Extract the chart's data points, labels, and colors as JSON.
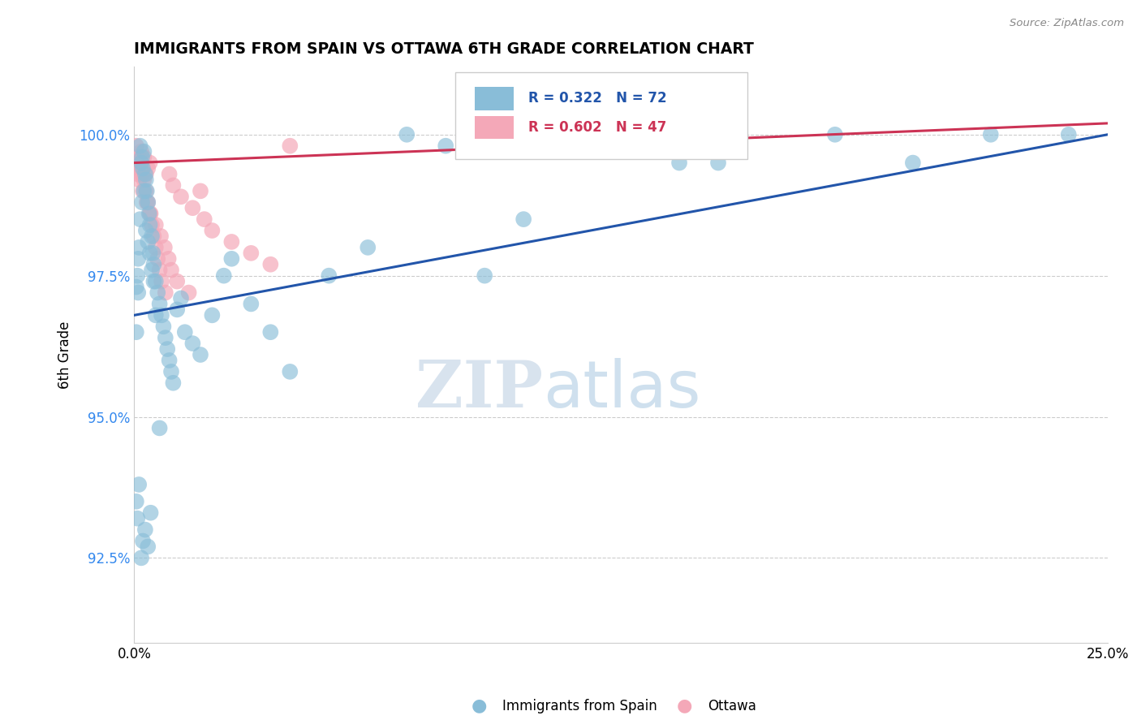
{
  "title": "IMMIGRANTS FROM SPAIN VS OTTAWA 6TH GRADE CORRELATION CHART",
  "source": "Source: ZipAtlas.com",
  "ylabel": "6th Grade",
  "yticks": [
    92.5,
    95.0,
    97.5,
    100.0
  ],
  "ytick_labels": [
    "92.5%",
    "95.0%",
    "97.5%",
    "100.0%"
  ],
  "xlim": [
    0.0,
    25.0
  ],
  "ylim": [
    91.0,
    101.2
  ],
  "legend_blue_label": "Immigrants from Spain",
  "legend_pink_label": "Ottawa",
  "R_blue": 0.322,
  "N_blue": 72,
  "R_pink": 0.602,
  "N_pink": 47,
  "blue_color": "#89bdd8",
  "pink_color": "#f4a8b8",
  "blue_line_color": "#2255aa",
  "pink_line_color": "#cc3355",
  "watermark_zip": "ZIP",
  "watermark_atlas": "atlas",
  "blue_x": [
    0.05,
    0.08,
    0.1,
    0.12,
    0.15,
    0.18,
    0.2,
    0.22,
    0.25,
    0.28,
    0.3,
    0.32,
    0.35,
    0.38,
    0.4,
    0.45,
    0.48,
    0.5,
    0.55,
    0.6,
    0.65,
    0.7,
    0.75,
    0.8,
    0.85,
    0.9,
    0.95,
    1.0,
    1.1,
    1.2,
    1.3,
    1.5,
    1.7,
    2.0,
    2.3,
    2.5,
    3.0,
    3.5,
    4.0,
    5.0,
    6.0,
    7.0,
    8.0,
    9.0,
    10.0,
    12.0,
    14.0,
    15.0,
    18.0,
    20.0,
    22.0,
    24.0,
    0.05,
    0.1,
    0.15,
    0.2,
    0.25,
    0.3,
    0.35,
    0.4,
    0.45,
    0.5,
    0.05,
    0.08,
    0.12,
    0.18,
    0.22,
    0.28,
    0.35,
    0.42,
    0.55,
    0.65
  ],
  "blue_y": [
    97.3,
    97.5,
    97.8,
    98.0,
    99.8,
    99.5,
    99.6,
    99.4,
    99.7,
    99.3,
    99.2,
    99.0,
    98.8,
    98.6,
    98.4,
    98.2,
    97.9,
    97.7,
    97.4,
    97.2,
    97.0,
    96.8,
    96.6,
    96.4,
    96.2,
    96.0,
    95.8,
    95.6,
    96.9,
    97.1,
    96.5,
    96.3,
    96.1,
    96.8,
    97.5,
    97.8,
    97.0,
    96.5,
    95.8,
    97.5,
    98.0,
    100.0,
    99.8,
    97.5,
    98.5,
    100.0,
    99.5,
    99.5,
    100.0,
    99.5,
    100.0,
    100.0,
    96.5,
    97.2,
    98.5,
    98.8,
    99.0,
    98.3,
    98.1,
    97.9,
    97.6,
    97.4,
    93.5,
    93.2,
    93.8,
    92.5,
    92.8,
    93.0,
    92.7,
    93.3,
    96.8,
    94.8
  ],
  "pink_x": [
    0.05,
    0.08,
    0.1,
    0.15,
    0.18,
    0.2,
    0.25,
    0.3,
    0.35,
    0.4,
    0.45,
    0.5,
    0.55,
    0.6,
    0.65,
    0.7,
    0.8,
    0.9,
    1.0,
    1.2,
    1.5,
    1.8,
    2.0,
    2.5,
    3.0,
    3.5,
    0.05,
    0.1,
    0.15,
    0.2,
    0.25,
    0.3,
    0.35,
    0.4,
    0.12,
    0.22,
    0.32,
    0.42,
    0.55,
    0.68,
    0.78,
    0.88,
    0.95,
    1.1,
    1.4,
    1.7,
    4.0
  ],
  "pink_y": [
    99.8,
    99.5,
    99.6,
    99.4,
    99.7,
    99.3,
    99.2,
    99.0,
    98.8,
    98.6,
    98.4,
    98.2,
    98.0,
    97.8,
    97.6,
    97.4,
    97.2,
    99.3,
    99.1,
    98.9,
    98.7,
    98.5,
    98.3,
    98.1,
    97.9,
    97.7,
    99.6,
    99.3,
    99.5,
    99.4,
    99.6,
    99.3,
    99.4,
    99.5,
    99.2,
    99.0,
    98.8,
    98.6,
    98.4,
    98.2,
    98.0,
    97.8,
    97.6,
    97.4,
    97.2,
    99.0,
    99.8
  ],
  "blue_trend": [
    96.8,
    100.0
  ],
  "pink_trend": [
    99.5,
    100.2
  ],
  "blue_trend_x": [
    0.0,
    25.0
  ],
  "pink_trend_x": [
    0.0,
    25.0
  ]
}
